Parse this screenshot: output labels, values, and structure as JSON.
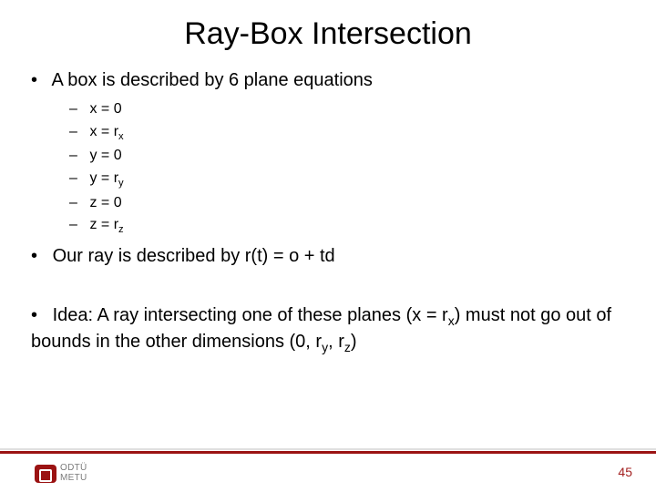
{
  "title": "Ray-Box Intersection",
  "bullets": {
    "b1": "A box is described by 6 plane equations",
    "eq0_lhs": "x = 0",
    "eq1_lhs": "x = r",
    "eq1_sub": "x",
    "eq2_lhs": "y = 0",
    "eq3_lhs": "y = r",
    "eq3_sub": "y",
    "eq4_lhs": "z = 0",
    "eq5_lhs": "z = r",
    "eq5_sub": "z",
    "b2": "Our ray is described by r(t) = o + td",
    "b3_a": "Idea: A ray intersecting one of these planes (x = r",
    "b3_sub1": "x",
    "b3_b": ") must not go out of bounds in the other dimensions (0, r",
    "b3_sub2": "y",
    "b3_c": ", r",
    "b3_sub3": "z",
    "b3_d": ")"
  },
  "footer": {
    "logo_line1": "ODTÜ",
    "logo_line2": "METU",
    "page": "45",
    "bar_color": "#9b1313",
    "pagenum_color": "#a32020"
  },
  "colors": {
    "background": "#ffffff",
    "text": "#000000"
  },
  "fontsizes": {
    "title": 34,
    "body": 20,
    "sub": 16,
    "pagenum": 14,
    "logo": 10
  }
}
